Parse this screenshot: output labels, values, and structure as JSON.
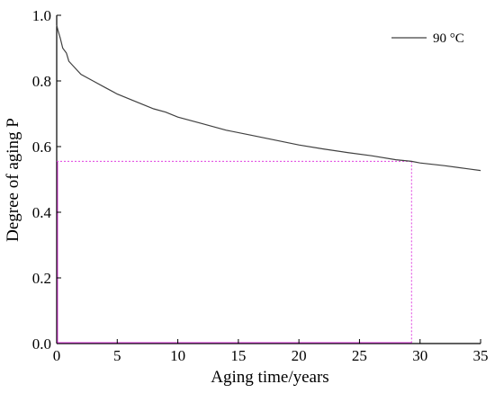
{
  "chart_data": {
    "type": "line",
    "xlabel": "Aging time/years",
    "ylabel": "Degree of aging P",
    "xlim": [
      0,
      35
    ],
    "ylim": [
      0,
      1.0
    ],
    "x_ticks": [
      0,
      5,
      10,
      15,
      20,
      25,
      30,
      35
    ],
    "x_tick_labels": [
      "0",
      "5",
      "10",
      "15",
      "20",
      "25",
      "30",
      "35"
    ],
    "y_ticks": [
      0,
      0.2,
      0.4,
      0.6,
      0.8,
      1.0
    ],
    "y_tick_labels": [
      "0.0",
      "0.2",
      "0.4",
      "0.6",
      "0.8",
      "1.0"
    ],
    "grid": false,
    "legend_position": "top-right",
    "series": [
      {
        "name": "90 °C",
        "color": "#404040",
        "x": [
          0,
          0.1,
          0.3,
          0.5,
          0.8,
          1,
          1.5,
          2,
          3,
          4,
          5,
          6,
          7,
          8,
          9,
          10,
          12,
          14,
          16,
          18,
          20,
          22,
          24,
          26,
          28,
          29.3,
          30,
          32,
          34,
          35
        ],
        "y": [
          0.97,
          0.955,
          0.93,
          0.9,
          0.885,
          0.86,
          0.84,
          0.82,
          0.8,
          0.78,
          0.76,
          0.745,
          0.73,
          0.715,
          0.705,
          0.69,
          0.67,
          0.65,
          0.635,
          0.62,
          0.605,
          0.593,
          0.582,
          0.572,
          0.56,
          0.555,
          0.55,
          0.542,
          0.532,
          0.527
        ]
      }
    ],
    "reference": {
      "color": "#e040e0",
      "x": 29.3,
      "y": 0.555
    }
  }
}
